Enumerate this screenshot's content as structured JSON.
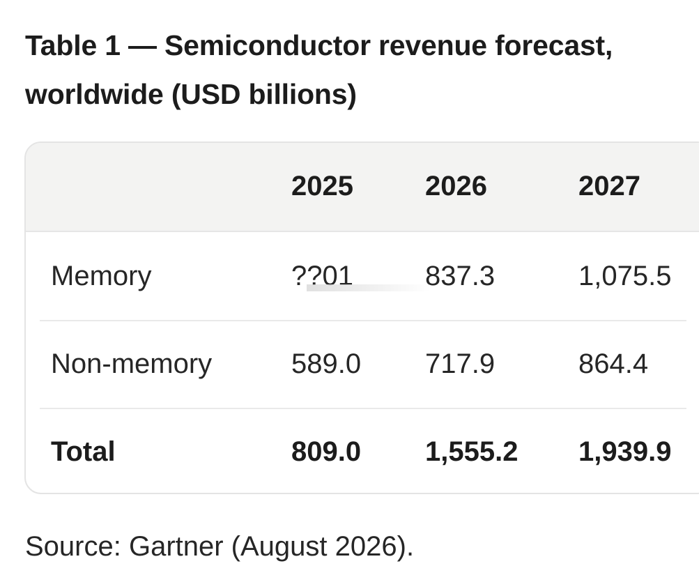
{
  "title": "Table 1 — Semiconductor revenue forecast, worldwide (USD billions)",
  "table": {
    "columns": [
      "",
      "2025",
      "2026",
      "2027"
    ],
    "rows": [
      {
        "label": "Memory",
        "values": [
          "??01",
          "837.3",
          "1,075.5"
        ]
      },
      {
        "label": "Non-memory",
        "values": [
          "589.0",
          "717.9",
          "864.4"
        ]
      },
      {
        "label": "Total",
        "values": [
          "809.0",
          "1,555.2",
          "1,939.9"
        ]
      }
    ]
  },
  "source": "Source: Gartner (August 2026)."
}
